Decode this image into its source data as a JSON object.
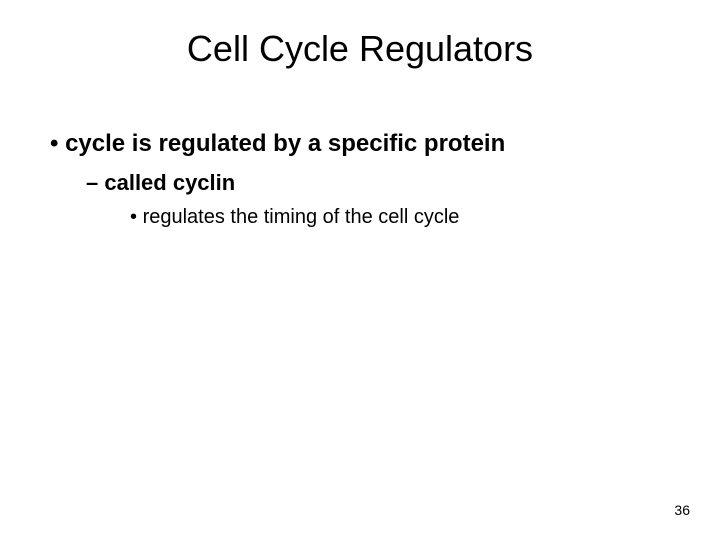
{
  "slide": {
    "title": "Cell Cycle Regulators",
    "bullets": {
      "level1_text": "cycle is regulated by a specific protein",
      "level2_text": "called cyclin",
      "level3_text": "regulates the timing of the cell cycle"
    },
    "page_number": "36",
    "styling": {
      "background_color": "#ffffff",
      "text_color": "#000000",
      "title_fontsize": 36,
      "title_fontweight": "normal",
      "level1_fontsize": 24,
      "level1_fontweight": "bold",
      "level2_fontsize": 22,
      "level2_fontweight": "bold",
      "level3_fontsize": 20,
      "level3_fontweight": "normal",
      "page_number_fontsize": 14,
      "font_family": "Arial"
    }
  }
}
